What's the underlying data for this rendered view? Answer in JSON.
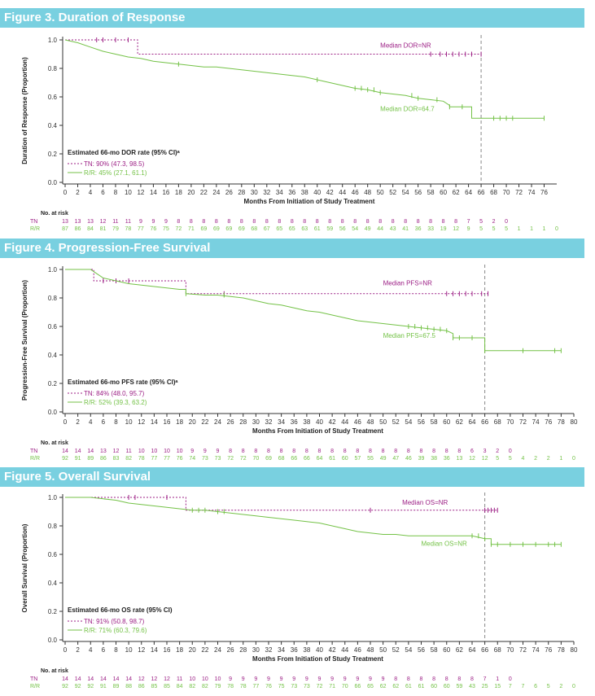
{
  "colors": {
    "banner": "#79d0e0",
    "tn": "#9c1f85",
    "rr": "#74c247",
    "axis": "#333333",
    "ref": "#888888"
  },
  "chart_data": [
    {
      "type": "line",
      "title": "Figure 3. Duration of Response",
      "ylabel": "Duration of Response (Proportion)",
      "xlabel": "Months From Initiation of Study Treatment",
      "xlim": [
        0,
        78
      ],
      "ylim": [
        0,
        1.0
      ],
      "xticks": [
        0,
        2,
        4,
        6,
        8,
        10,
        12,
        14,
        16,
        18,
        20,
        22,
        24,
        26,
        28,
        30,
        32,
        34,
        36,
        38,
        40,
        42,
        44,
        46,
        48,
        50,
        52,
        54,
        56,
        58,
        60,
        62,
        64,
        66,
        68,
        70,
        72,
        74,
        76
      ],
      "yticks": [
        0.0,
        0.2,
        0.4,
        0.6,
        0.8,
        1.0
      ],
      "ytick_labels": [
        "0.0",
        "0.2",
        "0.4",
        "0.6",
        "0.8",
        "1.0"
      ],
      "reference_x": 66,
      "series": [
        {
          "name": "TN",
          "style": "dashed",
          "x": [
            0,
            11.5,
            11.5,
            66
          ],
          "y": [
            1.0,
            1.0,
            0.9,
            0.9
          ],
          "censor_x": [
            5,
            6,
            8,
            10,
            58,
            59.5,
            60.5,
            61.5,
            62.5,
            63.5,
            64.5,
            66
          ]
        },
        {
          "name": "R/R",
          "style": "solid",
          "x": [
            0,
            2,
            4,
            6,
            8,
            10,
            12,
            14,
            16,
            18,
            20,
            22,
            24,
            26,
            28,
            30,
            32,
            34,
            36,
            38,
            40,
            42,
            44,
            46,
            48,
            50,
            52,
            54,
            56,
            58,
            60,
            61,
            61,
            64,
            64.5,
            64.5,
            66,
            66,
            76
          ],
          "y": [
            1.0,
            0.98,
            0.95,
            0.92,
            0.9,
            0.88,
            0.87,
            0.85,
            0.84,
            0.83,
            0.82,
            0.81,
            0.81,
            0.8,
            0.79,
            0.78,
            0.77,
            0.76,
            0.75,
            0.74,
            0.72,
            0.7,
            0.68,
            0.66,
            0.65,
            0.63,
            0.62,
            0.61,
            0.59,
            0.58,
            0.57,
            0.54,
            0.53,
            0.53,
            0.53,
            0.45,
            0.45,
            0.45,
            0.45
          ],
          "censor_x": [
            18,
            40,
            46,
            47,
            48,
            49,
            50,
            55,
            56,
            59,
            61,
            63,
            68,
            69,
            70,
            71,
            76
          ]
        }
      ],
      "annotations": [
        {
          "text": "Median DOR=NR",
          "x": 50,
          "y": 0.945,
          "series": "TN"
        },
        {
          "text": "Median DOR=64.7",
          "x": 50,
          "y": 0.5,
          "series": "R/R"
        }
      ],
      "legend": {
        "title": "Estimated 66-mo DOR rate (95% CI)ᵃ",
        "tn_label": "TN: 90% (47.3, 98.5)",
        "rr_label": "R/R: 45% (27.1, 61.1)",
        "position": "bottom-left"
      },
      "at_risk": {
        "title": "No. at risk",
        "tn": [
          "13",
          "13",
          "13",
          "12",
          "11",
          "11",
          "9",
          "9",
          "9",
          "8",
          "8",
          "8",
          "8",
          "8",
          "8",
          "8",
          "8",
          "8",
          "8",
          "8",
          "8",
          "8",
          "8",
          "8",
          "8",
          "8",
          "8",
          "8",
          "8",
          "8",
          "8",
          "8",
          "7",
          "5",
          "2",
          "0"
        ],
        "rr": [
          "87",
          "86",
          "84",
          "81",
          "79",
          "78",
          "77",
          "76",
          "75",
          "72",
          "71",
          "69",
          "69",
          "69",
          "69",
          "68",
          "67",
          "65",
          "65",
          "63",
          "61",
          "59",
          "56",
          "54",
          "49",
          "44",
          "43",
          "41",
          "36",
          "33",
          "19",
          "12",
          "9",
          "5",
          "5",
          "5",
          "1",
          "1",
          "1",
          "0"
        ]
      }
    },
    {
      "type": "line",
      "title": "Figure 4. Progression-Free Survival",
      "ylabel": "Progression-Free Survival (Proportion)",
      "xlabel": "Months From Initiation of Study Treatment",
      "xlim": [
        0,
        80
      ],
      "ylim": [
        0,
        1.0
      ],
      "xticks": [
        0,
        2,
        4,
        6,
        8,
        10,
        12,
        14,
        16,
        18,
        20,
        22,
        24,
        26,
        28,
        30,
        32,
        34,
        36,
        38,
        40,
        42,
        44,
        46,
        48,
        50,
        52,
        54,
        56,
        58,
        60,
        62,
        64,
        66,
        68,
        70,
        72,
        74,
        76,
        78,
        80
      ],
      "yticks": [
        0.0,
        0.2,
        0.4,
        0.6,
        0.8,
        1.0
      ],
      "ytick_labels": [
        "0.0",
        "0.2",
        "0.4",
        "0.6",
        "0.8",
        "1.0"
      ],
      "reference_x": 66,
      "series": [
        {
          "name": "TN",
          "style": "dashed",
          "x": [
            0,
            4.5,
            4.5,
            19,
            19,
            66.5
          ],
          "y": [
            1.0,
            1.0,
            0.92,
            0.92,
            0.83,
            0.83
          ],
          "censor_x": [
            6,
            8,
            10,
            25,
            60,
            61,
            62,
            63,
            64,
            65.5,
            66.5
          ]
        },
        {
          "name": "R/R",
          "style": "solid",
          "x": [
            0,
            4,
            5,
            6,
            8,
            10,
            12,
            14,
            16,
            18,
            19,
            19,
            22,
            24,
            26,
            28,
            30,
            32,
            34,
            36,
            38,
            40,
            42,
            44,
            46,
            48,
            50,
            52,
            54,
            56,
            58,
            60,
            61,
            61,
            66,
            66,
            78
          ],
          "y": [
            1.0,
            1.0,
            0.97,
            0.94,
            0.92,
            0.9,
            0.89,
            0.88,
            0.87,
            0.86,
            0.86,
            0.83,
            0.82,
            0.82,
            0.81,
            0.8,
            0.78,
            0.76,
            0.75,
            0.73,
            0.71,
            0.7,
            0.68,
            0.66,
            0.64,
            0.63,
            0.62,
            0.61,
            0.6,
            0.59,
            0.58,
            0.57,
            0.55,
            0.52,
            0.52,
            0.43,
            0.43
          ],
          "censor_x": [
            19,
            25,
            54,
            55,
            56,
            57,
            58,
            59,
            60,
            61,
            62,
            64,
            66,
            72,
            77,
            78
          ]
        }
      ],
      "annotations": [
        {
          "text": "Median PFS=NR",
          "x": 50,
          "y": 0.89,
          "series": "TN"
        },
        {
          "text": "Median PFS=67.5",
          "x": 50,
          "y": 0.52,
          "series": "R/R"
        }
      ],
      "legend": {
        "title": "Estimated 66-mo PFS rate (95% CI)ᵃ",
        "tn_label": "TN: 84% (48.0, 95.7)",
        "rr_label": "R/R: 52% (39.3, 63.2)",
        "position": "bottom-left"
      },
      "at_risk": {
        "title": "No. at risk",
        "tn": [
          "14",
          "14",
          "14",
          "13",
          "12",
          "11",
          "10",
          "10",
          "10",
          "10",
          "9",
          "9",
          "9",
          "8",
          "8",
          "8",
          "8",
          "8",
          "8",
          "8",
          "8",
          "8",
          "8",
          "8",
          "8",
          "8",
          "8",
          "8",
          "8",
          "8",
          "8",
          "8",
          "6",
          "3",
          "2",
          "0"
        ],
        "rr": [
          "92",
          "91",
          "89",
          "86",
          "83",
          "82",
          "78",
          "77",
          "77",
          "76",
          "74",
          "73",
          "73",
          "72",
          "72",
          "70",
          "69",
          "68",
          "66",
          "66",
          "64",
          "61",
          "60",
          "57",
          "55",
          "49",
          "47",
          "46",
          "39",
          "38",
          "36",
          "13",
          "12",
          "12",
          "5",
          "5",
          "4",
          "2",
          "2",
          "1",
          "0"
        ]
      }
    },
    {
      "type": "line",
      "title": "Figure 5. Overall Survival",
      "ylabel": "Overall Survival (Proportion)",
      "xlabel": "Months From Initiation of Study Treatment",
      "xlim": [
        0,
        80
      ],
      "ylim": [
        0,
        1.0
      ],
      "xticks": [
        0,
        2,
        4,
        6,
        8,
        10,
        12,
        14,
        16,
        18,
        20,
        22,
        24,
        26,
        28,
        30,
        32,
        34,
        36,
        38,
        40,
        42,
        44,
        46,
        48,
        50,
        52,
        54,
        56,
        58,
        60,
        62,
        64,
        66,
        68,
        70,
        72,
        74,
        76,
        78,
        80
      ],
      "yticks": [
        0.0,
        0.2,
        0.4,
        0.6,
        0.8,
        1.0
      ],
      "ytick_labels": [
        "0.0",
        "0.2",
        "0.4",
        "0.6",
        "0.8",
        "1.0"
      ],
      "reference_x": 66,
      "series": [
        {
          "name": "TN",
          "style": "dashed",
          "x": [
            0,
            19,
            19,
            68
          ],
          "y": [
            1.0,
            1.0,
            0.91,
            0.91
          ],
          "censor_x": [
            10,
            11,
            16,
            48,
            66,
            66.5,
            67,
            67.5,
            68
          ]
        },
        {
          "name": "R/R",
          "style": "solid",
          "x": [
            0,
            4,
            6,
            8,
            10,
            12,
            14,
            16,
            18,
            20,
            22,
            24,
            26,
            28,
            30,
            32,
            34,
            36,
            38,
            40,
            42,
            44,
            46,
            48,
            50,
            52,
            54,
            56,
            58,
            60,
            62,
            64,
            66,
            67,
            67,
            78
          ],
          "y": [
            1.0,
            1.0,
            0.99,
            0.98,
            0.96,
            0.95,
            0.94,
            0.93,
            0.92,
            0.91,
            0.91,
            0.9,
            0.89,
            0.88,
            0.87,
            0.86,
            0.85,
            0.84,
            0.83,
            0.82,
            0.8,
            0.78,
            0.76,
            0.75,
            0.74,
            0.74,
            0.73,
            0.73,
            0.73,
            0.73,
            0.73,
            0.73,
            0.71,
            0.71,
            0.67,
            0.67
          ],
          "censor_x": [
            20,
            21,
            22,
            24,
            25,
            64,
            65,
            66,
            67,
            68,
            70,
            72,
            74,
            76,
            77,
            78
          ]
        }
      ],
      "annotations": [
        {
          "text": "Median OS=NR",
          "x": 53,
          "y": 0.95,
          "series": "TN"
        },
        {
          "text": "Median OS=NR",
          "x": 56,
          "y": 0.66,
          "series": "R/R"
        }
      ],
      "legend": {
        "title": "Estimated 66-mo OS rate (95% CI)",
        "tn_label": "TN: 91% (50.8, 98.7)",
        "rr_label": "R/R: 71% (60.3, 79.6)",
        "position": "bottom-left"
      },
      "at_risk": {
        "title": "No. at risk",
        "tn": [
          "14",
          "14",
          "14",
          "14",
          "14",
          "14",
          "12",
          "12",
          "12",
          "11",
          "10",
          "10",
          "10",
          "9",
          "9",
          "9",
          "9",
          "9",
          "9",
          "9",
          "9",
          "9",
          "9",
          "9",
          "9",
          "9",
          "8",
          "8",
          "8",
          "8",
          "8",
          "8",
          "8",
          "7",
          "1",
          "0"
        ],
        "rr": [
          "92",
          "92",
          "92",
          "91",
          "89",
          "88",
          "86",
          "85",
          "85",
          "84",
          "82",
          "82",
          "79",
          "78",
          "78",
          "77",
          "76",
          "75",
          "73",
          "73",
          "72",
          "71",
          "70",
          "66",
          "65",
          "62",
          "62",
          "61",
          "61",
          "60",
          "60",
          "59",
          "43",
          "25",
          "15",
          "7",
          "7",
          "6",
          "5",
          "2",
          "0"
        ]
      }
    }
  ]
}
